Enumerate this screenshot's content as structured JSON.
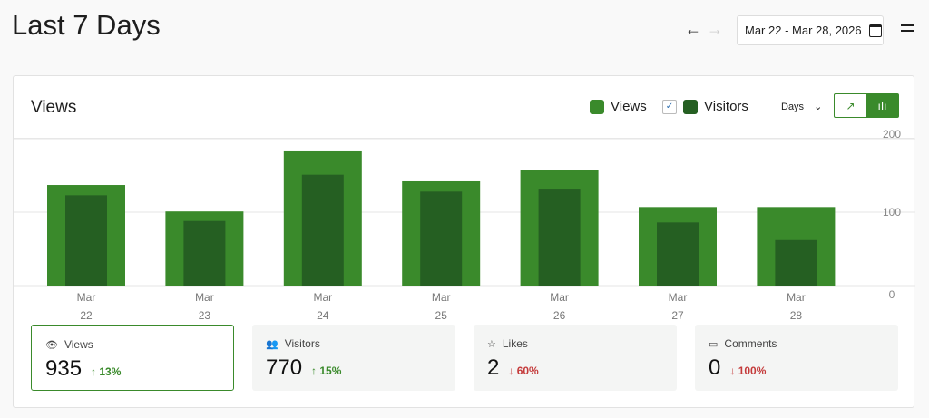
{
  "header": {
    "title": "Last 7 Days",
    "prev_icon": "arrow-left-icon",
    "next_icon": "arrow-right-icon",
    "date_range": "Mar 22 - Mar 28, 2026"
  },
  "chart_panel": {
    "title": "Views",
    "legend": [
      {
        "label": "Views",
        "color": "#3a8a2b"
      },
      {
        "label": "Visitors",
        "color": "#255f22",
        "checked": true
      }
    ],
    "period": "Days",
    "view_mode": "bar"
  },
  "chart_data": {
    "type": "bar",
    "categories": [
      [
        "Mar",
        "22"
      ],
      [
        "Mar",
        "23"
      ],
      [
        "Mar",
        "24"
      ],
      [
        "Mar",
        "25"
      ],
      [
        "Mar",
        "26"
      ],
      [
        "Mar",
        "27"
      ],
      [
        "Mar",
        "28"
      ]
    ],
    "series": [
      {
        "name": "Views",
        "color": "#3a8a2b",
        "values": [
          137,
          101,
          184,
          142,
          157,
          107,
          107
        ]
      },
      {
        "name": "Visitors",
        "color": "#255f22",
        "values": [
          123,
          88,
          151,
          128,
          132,
          86,
          62
        ]
      }
    ],
    "yticks": [
      "0",
      "100",
      "200"
    ],
    "ylim": [
      0,
      200
    ],
    "grid": true
  },
  "stats": [
    {
      "label": "Views",
      "value": "935",
      "change": "↑ 13%",
      "trend": "up",
      "selected": true
    },
    {
      "label": "Visitors",
      "value": "770",
      "change": "↑ 15%",
      "trend": "up"
    },
    {
      "label": "Likes",
      "value": "2",
      "change": "↓ 60%",
      "trend": "down"
    },
    {
      "label": "Comments",
      "value": "0",
      "change": "↓ 100%",
      "trend": "down"
    }
  ],
  "colors": {
    "up": "#3a8a2b",
    "down": "#c43a3a"
  }
}
